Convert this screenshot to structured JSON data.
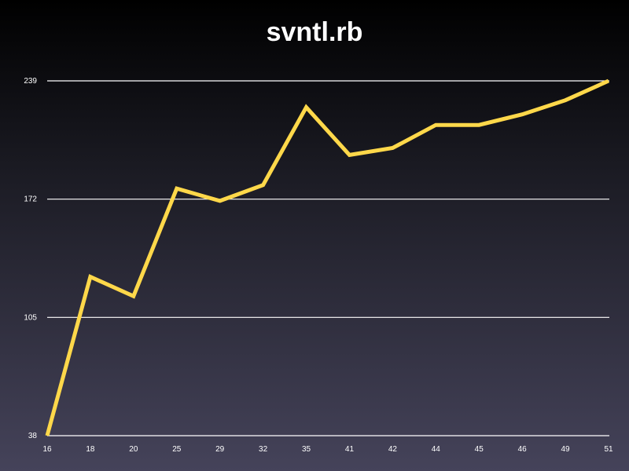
{
  "chart_data": {
    "type": "line",
    "title": "svntl.rb",
    "xlabel": "",
    "ylabel": "",
    "categories": [
      "16",
      "18",
      "20",
      "25",
      "29",
      "32",
      "35",
      "41",
      "42",
      "44",
      "45",
      "46",
      "49",
      "51"
    ],
    "series": [
      {
        "values": [
          38,
          128,
          117,
          178,
          171,
          180,
          224,
          197,
          201,
          214,
          214,
          220,
          228,
          239
        ],
        "color": "#ffd84a"
      }
    ],
    "yticks": [
      "38",
      "105",
      "172",
      "239"
    ],
    "ylim": [
      38,
      239
    ],
    "grid": true,
    "legend": "none"
  }
}
